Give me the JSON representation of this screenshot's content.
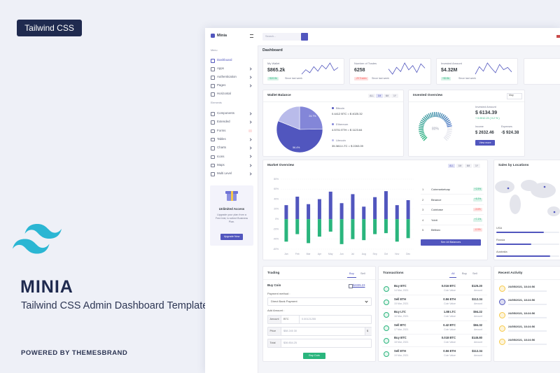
{
  "badge": "Tailwind CSS",
  "product": {
    "name": "MINIA",
    "tagline": "Tailwind CSS Admin Dashboard Template",
    "powered_by": "POWERED BY THEMESBRAND"
  },
  "app": {
    "brand": "Minia",
    "search_placeholder": "Search...",
    "sidebar": {
      "menu_heading": "Menu",
      "menu": [
        "Dashboard",
        "Apps",
        "Authentication",
        "Pages",
        "Horizontal"
      ],
      "elements_heading": "Elements",
      "elements": [
        "Components",
        "Extended",
        "Forms",
        "Tables",
        "Charts",
        "Icons",
        "Maps",
        "Multi Level"
      ],
      "promo": {
        "title": "Unlimited Access",
        "text": "Upgrade your plan from a Free trial, to select Business Plan.",
        "button": "Upgrade Now"
      }
    },
    "page_title": "Dashboard",
    "stats": [
      {
        "label": "My Wallet",
        "value": "$865.2k",
        "badge": "+$20.9k",
        "note": "Since last week",
        "trend": [
          14,
          20,
          16,
          24,
          18,
          26,
          21,
          29,
          19,
          23
        ]
      },
      {
        "label": "Number of Trades",
        "value": "6258",
        "badge": "-29 Trades",
        "note": "Since last week",
        "trend": [
          18,
          12,
          20,
          15,
          25,
          17,
          22,
          14,
          24,
          19
        ]
      },
      {
        "label": "Invested Amount",
        "value": "$4.32M",
        "badge": "+$2.8k",
        "note": "Since last week",
        "trend": [
          12,
          22,
          16,
          27,
          20,
          14,
          25,
          18,
          21,
          15
        ]
      }
    ],
    "wallet": {
      "title": "Wallet Balance",
      "tabs": [
        "ALL",
        "1M",
        "6M",
        "1Y"
      ],
      "coins": [
        {
          "name": "Bitcoin",
          "balance": "0.4412 BTC = $ 4025.32",
          "share": 56.4,
          "share_label": "56.4%",
          "color": "#5156be"
        },
        {
          "name": "Ethereum",
          "balance": "4.5701 ETH = $ 1123.64",
          "share": 24.7,
          "share_label": "24.7%",
          "color": "#8386d8"
        },
        {
          "name": "Litecoin",
          "balance": "35.3811 LTC = $ 2263.09",
          "share": 18.9,
          "color": "#b9bbea"
        }
      ]
    },
    "invested": {
      "title": "Invested Overview",
      "period": "May",
      "gauge": 80,
      "gauge_label": "80%",
      "label": "Invested Amount",
      "amount": "$ 6134.39",
      "change": "+ 0.0012.23 ( 0.2 % )",
      "income_label": "Income",
      "income": "$ 2632.46",
      "expenses_label": "Expenses",
      "expenses": "-$ 924.38",
      "button": "View more"
    },
    "market": {
      "title": "Market Overview",
      "tabs": [
        "ALL",
        "1M",
        "6M",
        "1Y"
      ],
      "months": [
        "Jan",
        "Feb",
        "Mar",
        "Apr",
        "May",
        "Jun",
        "Jul",
        "Aug",
        "Sep",
        "Oct",
        "Nov",
        "Dec"
      ],
      "ylim": [
        -60,
        80
      ],
      "yticks": [
        {
          "value": -60,
          "label": "-60%"
        },
        {
          "value": -40,
          "label": "-40%"
        },
        {
          "value": -20,
          "label": "-20%"
        },
        {
          "value": 0,
          "label": "0%"
        },
        {
          "value": 20,
          "label": "20%"
        },
        {
          "value": 40,
          "label": "40%"
        },
        {
          "value": 60,
          "label": "60%"
        },
        {
          "value": 80,
          "label": "80%"
        }
      ],
      "series": [
        {
          "color": "#5156be",
          "values": [
            28,
            45,
            30,
            40,
            55,
            32,
            50,
            25,
            44,
            56,
            28,
            38
          ]
        },
        {
          "color": "#2ab57d",
          "values": [
            -45,
            -30,
            -48,
            -35,
            -25,
            -50,
            -40,
            -42,
            -30,
            -28,
            -45,
            -38
          ]
        }
      ],
      "exchanges": [
        {
          "rank": 1,
          "name": "Coinmarketcap",
          "change": "+2.5%"
        },
        {
          "rank": 2,
          "name": "Binance",
          "change": "+8.3%"
        },
        {
          "rank": 3,
          "name": "Coinbase",
          "change": "-3.6%"
        },
        {
          "rank": 4,
          "name": "Yobit",
          "change": "+7.1%"
        },
        {
          "rank": 5,
          "name": "Bitfinex",
          "change": "-0.9%"
        }
      ],
      "button": "See All Balances"
    },
    "sales": {
      "title": "Sales by Locations",
      "locations": [
        {
          "name": "USA",
          "value": 75
        },
        {
          "name": "Russia",
          "value": 55
        },
        {
          "name": "Australia",
          "value": 85
        }
      ]
    },
    "trading": {
      "title": "Trading",
      "tabs": [
        "Buy",
        "Sell"
      ],
      "heading": "Buy Coin",
      "balance": "$4335.23",
      "payment_label": "Payment method :",
      "payment": "Direct Bank Payment",
      "amount_label": "Add Amount :",
      "fields": [
        {
          "label": "Amount",
          "unit": "BTC",
          "value": "0.00121255"
        },
        {
          "label": "Price",
          "value": "$58 245 30",
          "suffix": "$"
        },
        {
          "label": "Total",
          "value": "$36 854.25"
        }
      ],
      "button": "Buy Coin"
    },
    "transactions": {
      "title": "Transactions",
      "tabs": [
        "All",
        "Buy",
        "Sell"
      ],
      "amount_note": "Coin Value",
      "value_note": "Amount",
      "rows": [
        {
          "type": "Buy BTC",
          "date": "14 Mar, 2021",
          "amount": "0.016 BTC",
          "value": "$125.20"
        },
        {
          "type": "Sell ETH",
          "date": "15 Mar, 2021",
          "amount": "0.56 ETH",
          "value": "$112.34"
        },
        {
          "type": "Buy LTC",
          "date": "16 Mar, 2021",
          "amount": "1.88 LTC",
          "value": "$94.22"
        },
        {
          "type": "Sell BTC",
          "date": "17 Mar, 2021",
          "amount": "0.42 BTC",
          "value": "$84.32"
        },
        {
          "type": "Buy BTC",
          "date": "18 Mar, 2021",
          "amount": "0.018 BTC",
          "value": "$145.80"
        },
        {
          "type": "Sell ETH",
          "date": "19 Mar, 2021",
          "amount": "0.56 ETH",
          "value": "$112.34"
        }
      ]
    },
    "activity": {
      "title": "Recent Activity",
      "items": [
        "24/05/2021, 18:24:56",
        "24/05/2021, 18:24:56",
        "24/05/2021, 18:24:56",
        "24/05/2021, 18:24:56",
        "24/05/2021, 18:24:56"
      ]
    }
  }
}
